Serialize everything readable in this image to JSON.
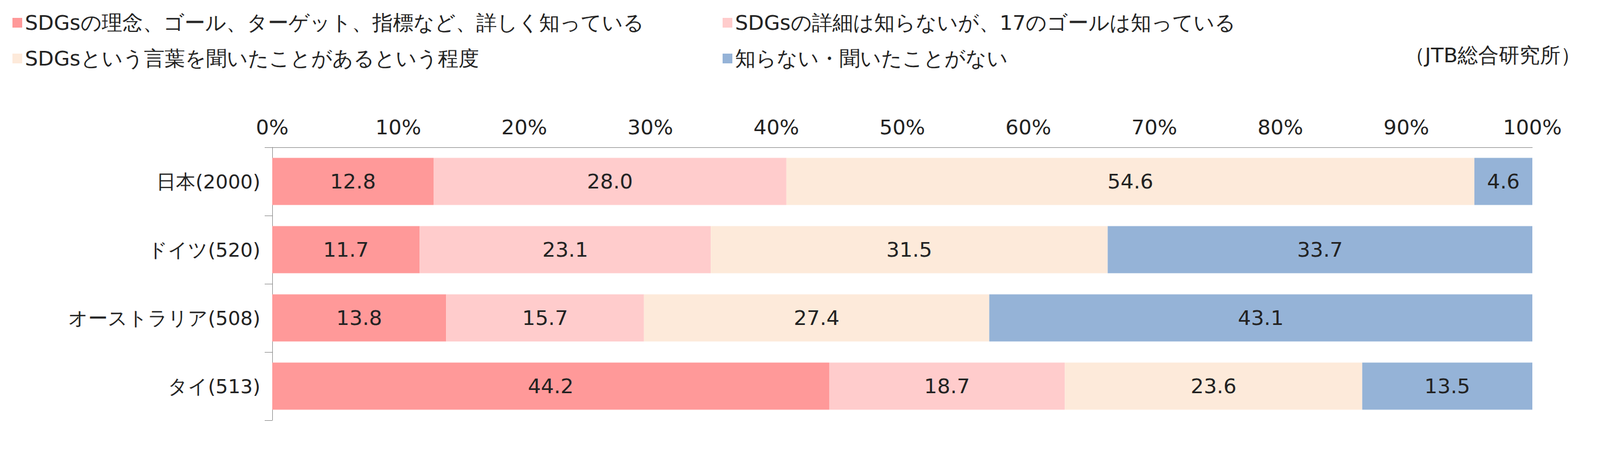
{
  "chart_data": {
    "type": "bar",
    "orientation": "horizontal",
    "stacked": true,
    "data_labels": true,
    "grid": false,
    "legend": "top",
    "source": "（JTB総合研究所）",
    "categories": [
      "日本(2000)",
      "ドイツ(520)",
      "オーストラリア(508)",
      "タイ(513)"
    ],
    "xlim": [
      0,
      100
    ],
    "xticks": [
      {
        "value": 0,
        "label": "0%"
      },
      {
        "value": 10,
        "label": "10%"
      },
      {
        "value": 20,
        "label": "20%"
      },
      {
        "value": 30,
        "label": "30%"
      },
      {
        "value": 40,
        "label": "40%"
      },
      {
        "value": 50,
        "label": "50%"
      },
      {
        "value": 60,
        "label": "60%"
      },
      {
        "value": 70,
        "label": "70%"
      },
      {
        "value": 80,
        "label": "80%"
      },
      {
        "value": 90,
        "label": "90%"
      },
      {
        "value": 100,
        "label": "100%"
      }
    ],
    "series": [
      {
        "name": "SDGsの理念、ゴール、ターゲット、指標など、詳しく知っている",
        "color": "#ff9999",
        "values": [
          12.8,
          11.7,
          13.8,
          44.2
        ],
        "value_labels": [
          "12.8",
          "11.7",
          "13.8",
          "44.2"
        ]
      },
      {
        "name": "SDGsの詳細は知らないが、17のゴールは知っている",
        "color": "#ffcccc",
        "values": [
          28.0,
          23.1,
          15.7,
          18.7
        ],
        "value_labels": [
          "28.0",
          "23.1",
          "15.7",
          "18.7"
        ]
      },
      {
        "name": "SDGsという言葉を聞いたことがあるという程度",
        "color": "#fdeada",
        "values": [
          54.6,
          31.5,
          27.4,
          23.6
        ],
        "value_labels": [
          "54.6",
          "31.5",
          "27.4",
          "23.6"
        ]
      },
      {
        "name": "知らない・聞いたことがない",
        "color": "#95b3d7",
        "values": [
          4.6,
          33.7,
          43.1,
          13.5
        ],
        "value_labels": [
          "4.6",
          "33.7",
          "43.1",
          "13.5"
        ]
      }
    ]
  }
}
